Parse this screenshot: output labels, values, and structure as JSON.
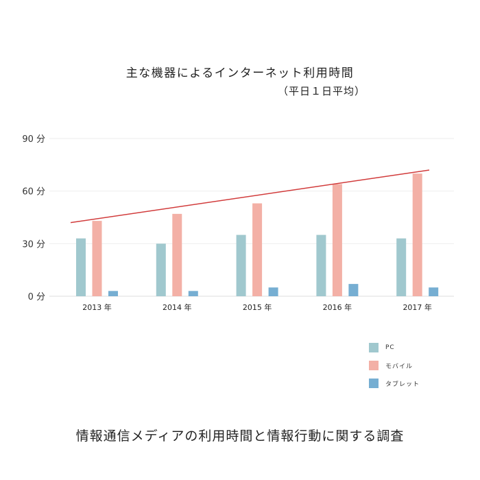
{
  "title": "主な機器によるインターネット利用時間",
  "subtitle": "（平日１日平均）",
  "footer": "情報通信メディアの利用時間と情報行動に関する調査",
  "colors": {
    "pc": "#a0c8ce",
    "mobile": "#f3b0a6",
    "tablet": "#76aed2",
    "trend": "#d13a3a",
    "grid": "#eeeeee"
  },
  "legend": [
    {
      "label": "PC",
      "color": "#a0c8ce"
    },
    {
      "label": "モバイル",
      "color": "#f3b0a6"
    },
    {
      "label": "タブレット",
      "color": "#76aed2"
    }
  ],
  "y_ticks": [
    "0 分",
    "30 分",
    "60 分",
    "90 分"
  ],
  "x_ticks": [
    "2013 年",
    "2014 年",
    "2015 年",
    "2016 年",
    "2017 年"
  ],
  "chart_data": {
    "type": "bar",
    "title": "主な機器によるインターネット利用時間（平日１日平均）",
    "xlabel": "",
    "ylabel": "分",
    "categories": [
      "2013 年",
      "2014 年",
      "2015 年",
      "2016 年",
      "2017 年"
    ],
    "series": [
      {
        "name": "PC",
        "values": [
          33,
          30,
          35,
          35,
          33
        ]
      },
      {
        "name": "モバイル",
        "values": [
          43,
          47,
          53,
          64,
          70
        ]
      },
      {
        "name": "タブレット",
        "values": [
          3,
          3,
          5,
          7,
          5
        ]
      }
    ],
    "trend_line": {
      "series": "モバイル",
      "start": 42,
      "end": 72
    },
    "ylim": [
      0,
      90
    ],
    "yticks": [
      0,
      30,
      60,
      90
    ],
    "grid": true,
    "legend_position": "bottom-right",
    "source": "情報通信メディアの利用時間と情報行動に関する調査"
  }
}
